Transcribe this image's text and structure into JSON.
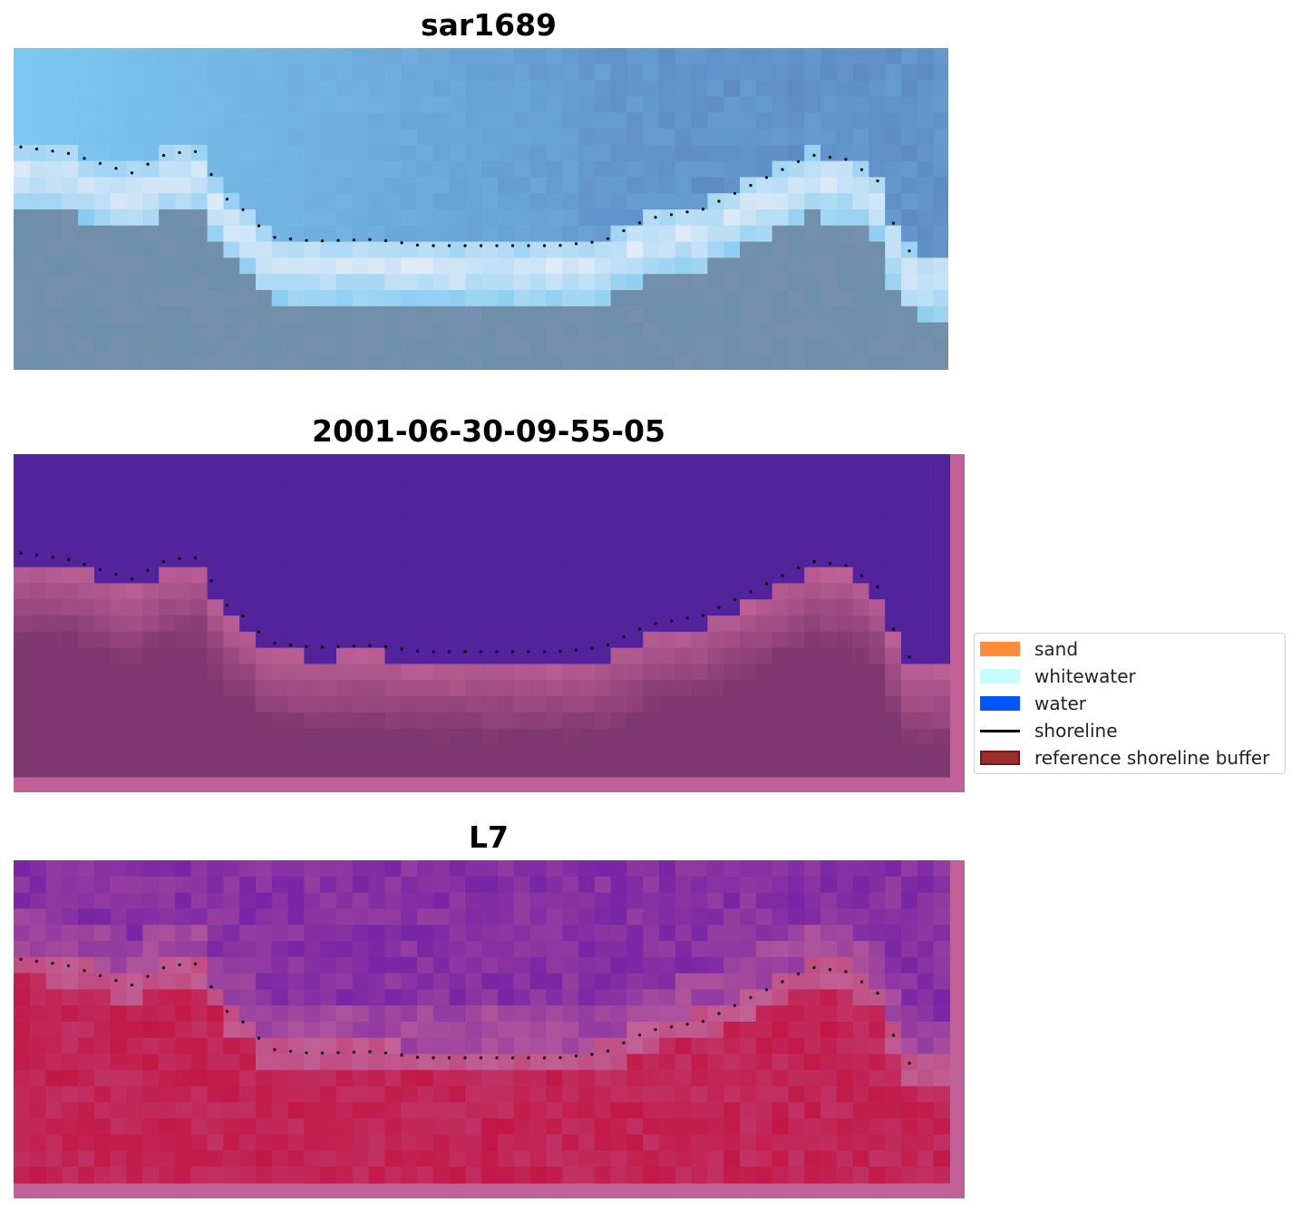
{
  "panels": [
    {
      "title": "sar1689"
    },
    {
      "title": "2001-06-30-09-55-05"
    },
    {
      "title": "L7"
    }
  ],
  "legend": {
    "items": [
      {
        "label": "sand",
        "color": "#ff8c3a",
        "kind": "patch"
      },
      {
        "label": "whitewater",
        "color": "#c8fcff",
        "kind": "patch"
      },
      {
        "label": "water",
        "color": "#0055ff",
        "kind": "patch"
      },
      {
        "label": "shoreline",
        "color": "#000000",
        "kind": "line"
      },
      {
        "label": "reference shoreline buffer",
        "color": "#9b2d2d",
        "kind": "patch"
      }
    ]
  },
  "colors": {
    "rgb_sky": "#7cc8f0",
    "rgb_water": "#6e8fa8",
    "rgb_surf": "#e8eef8",
    "class_water": "#52239a",
    "class_land": "#7f386f",
    "class_buffer": "#c06298",
    "mndwi_water": "#6b1aa8",
    "mndwi_land": "#c21848",
    "shoreline_dots": "#000000"
  }
}
